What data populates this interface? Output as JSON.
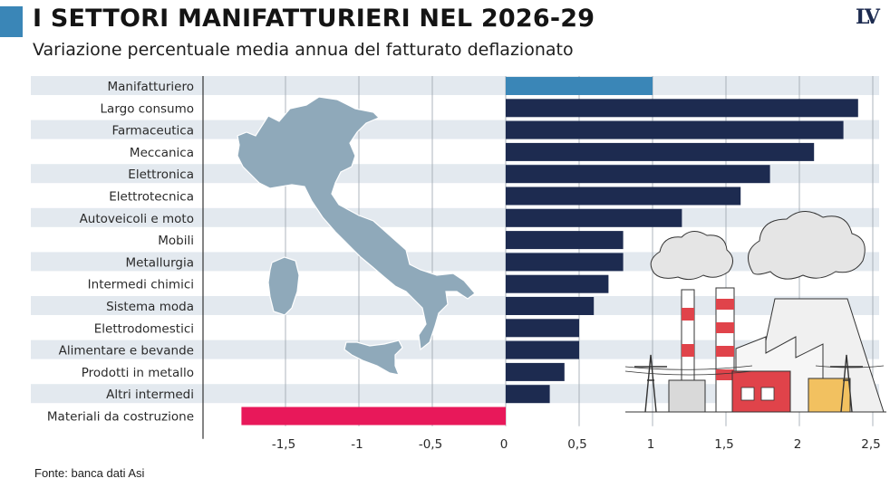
{
  "header": {
    "title": "I SETTORI MANIFATTURIERI NEL 2026-29",
    "subtitle": "Variazione percentuale media annua del fatturato deflazionato",
    "logo_text": "LV"
  },
  "footer": {
    "source": "Fonte: banca dati Asi"
  },
  "colors": {
    "accent": "#3a86b7",
    "bar_default": "#1d2b50",
    "bar_highlight": "#3a86b7",
    "bar_negative": "#e8185a",
    "row_band": "#e3e9ef",
    "map": "#8fa9ba"
  },
  "illustrations": [
    "italy-map",
    "factory-illustration"
  ],
  "chart_data": {
    "type": "bar",
    "orientation": "horizontal",
    "categories": [
      "Manifatturiero",
      "Largo consumo",
      "Farmaceutica",
      "Meccanica",
      "Elettronica",
      "Elettrotecnica",
      "Autoveicoli e moto",
      "Mobili",
      "Metallurgia",
      "Intermedi chimici",
      "Sistema moda",
      "Elettrodomestici",
      "Alimentare e bevande",
      "Prodotti in metallo",
      "Altri intermedi",
      "Materiali da costruzione"
    ],
    "values": [
      1.0,
      2.4,
      2.3,
      2.1,
      1.8,
      1.6,
      1.2,
      0.8,
      0.8,
      0.7,
      0.6,
      0.5,
      0.5,
      0.4,
      0.3,
      -1.8
    ],
    "highlight_category": "Manifatturiero",
    "xlim": [
      -2.0,
      2.5
    ],
    "ticks": [
      -1.5,
      -1,
      -0.5,
      0,
      0.5,
      1,
      1.5,
      2,
      2.5
    ],
    "tick_labels": [
      "-1,5",
      "-1",
      "-0,5",
      "0",
      "0,5",
      "1",
      "1,5",
      "2",
      "2,5"
    ],
    "grid": true
  }
}
